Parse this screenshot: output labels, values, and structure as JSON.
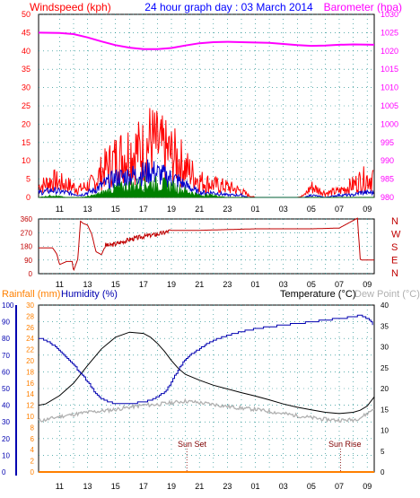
{
  "colors": {
    "background": "#ffffff",
    "grid": "#008080",
    "wind": "#ff0000",
    "gust_dir_title": "#0000ff",
    "gust": "#0000cd",
    "avg_wind": "#008000",
    "barometer": "#ff00ff",
    "direction": "#c00000",
    "humidity": "#0000b0",
    "rain_axis": "#ff8000",
    "temperature": "#000000",
    "dewpoint": "#b0b0b0",
    "axis_left": "#0000b0"
  },
  "header": {
    "windspeed_title": "Windspeed (kph)",
    "graph_title": "24 hour graph day : 03 March 2014",
    "barometer_title": "Barometer (hpa)"
  },
  "bottom_header": {
    "rainfall_title": "Rainfall (mm)",
    "humidity_title": "Humidity (%)",
    "temperature_title": "Temperature (°C)",
    "dewpoint_title": "Dew Point (°C)"
  },
  "direction_labels": [
    "N",
    "W",
    "S",
    "E",
    "N"
  ],
  "annotations": {
    "sunset": "Sun Set",
    "sunrise": "Sun Rise"
  },
  "chart_data": [
    {
      "type": "line",
      "title": "24 hour graph day : 03 March 2014",
      "x_ticks": [
        "11",
        "13",
        "15",
        "17",
        "19",
        "21",
        "23",
        "01",
        "03",
        "05",
        "07",
        "09"
      ],
      "xlim_hours": [
        9.5,
        33.5
      ],
      "y_left": {
        "label": "Windspeed (kph)",
        "ylim": [
          0,
          50
        ],
        "ticks": [
          0,
          5,
          10,
          15,
          20,
          25,
          30,
          35,
          40,
          45,
          50
        ]
      },
      "y_right": {
        "label": "Barometer (hpa)",
        "ylim": [
          980,
          1030
        ],
        "ticks": [
          980,
          985,
          990,
          995,
          1000,
          1005,
          1010,
          1015,
          1020,
          1025,
          1030
        ]
      },
      "series": [
        {
          "name": "Barometer",
          "axis": "right",
          "x": [
            9.5,
            11,
            12,
            13,
            14,
            15,
            16,
            17,
            18,
            19,
            20,
            21,
            22,
            23,
            24,
            25,
            26,
            27,
            28,
            29,
            30,
            31,
            32,
            33.5
          ],
          "values": [
            1025.0,
            1024.9,
            1024.6,
            1023.7,
            1022.6,
            1021.6,
            1020.9,
            1020.5,
            1020.5,
            1020.8,
            1021.5,
            1022.1,
            1022.4,
            1022.5,
            1022.4,
            1022.3,
            1022.2,
            1021.9,
            1021.6,
            1021.4,
            1021.5,
            1021.7,
            1021.8,
            1021.7
          ]
        },
        {
          "name": "Wind gust envelope",
          "x": [
            9.5,
            10.5,
            11.5,
            12.5,
            13.5,
            14,
            15,
            16,
            17,
            17.5,
            18,
            19,
            19.5,
            20,
            21,
            22,
            23,
            24,
            24.5,
            25,
            26,
            27,
            28,
            28.5,
            29,
            30,
            31,
            32,
            32.5,
            33,
            33.5
          ],
          "values": [
            5,
            8,
            6,
            4,
            7,
            12,
            18,
            22,
            22,
            27,
            24,
            20,
            18,
            14,
            8,
            6,
            5,
            3,
            1,
            0,
            0,
            0,
            0,
            1,
            5,
            2,
            3,
            6,
            8,
            9,
            10
          ]
        },
        {
          "name": "Wind speed",
          "x": [
            9.5,
            10.5,
            11.5,
            12.5,
            13.5,
            14,
            15,
            16,
            17,
            17.5,
            18,
            19,
            19.5,
            20,
            21,
            22,
            23,
            24,
            24.5,
            25,
            26,
            27,
            28,
            28.5,
            29,
            30,
            31,
            32,
            32.5,
            33,
            33.5
          ],
          "values": [
            2,
            3,
            2,
            1,
            3,
            5,
            8,
            9,
            10,
            11,
            10,
            8,
            7,
            5,
            2,
            2,
            1,
            1,
            0,
            0,
            0,
            0,
            0,
            0,
            1,
            0,
            1,
            1,
            2,
            2,
            2
          ]
        },
        {
          "name": "Average wind",
          "x": [
            9.5,
            10.5,
            11.5,
            12.5,
            13.5,
            14,
            15,
            16,
            17,
            17.5,
            18,
            19,
            19.5,
            20,
            21,
            22,
            23,
            24,
            24.5,
            25,
            26,
            27,
            28,
            28.5,
            29,
            30,
            31,
            32,
            32.5,
            33,
            33.5
          ],
          "values": [
            0,
            1,
            0,
            0,
            1,
            2,
            4,
            5,
            6,
            6,
            6,
            5,
            4,
            3,
            1,
            1,
            0,
            0,
            0,
            0,
            0,
            0,
            0,
            0,
            0,
            0,
            0,
            0,
            0,
            0,
            0
          ]
        }
      ]
    },
    {
      "type": "line",
      "title": "Wind Direction",
      "y_ticks": [
        0,
        90,
        180,
        270,
        360
      ],
      "ylim": [
        0,
        360
      ],
      "series": [
        {
          "name": "Wind Direction",
          "x": [
            9.5,
            10.5,
            10.8,
            11,
            11.5,
            11.9,
            12,
            12.3,
            12.5,
            12.7,
            13,
            13.3,
            13.6,
            14,
            14.3,
            14.5,
            15,
            16,
            17,
            18,
            18.5,
            19,
            21,
            23,
            25,
            27,
            29,
            31,
            32.3,
            32.5,
            32.6,
            33,
            33.5
          ],
          "values": [
            170,
            170,
            130,
            60,
            80,
            80,
            20,
            95,
            345,
            330,
            320,
            260,
            145,
            125,
            190,
            185,
            195,
            225,
            245,
            260,
            270,
            285,
            285,
            290,
            295,
            295,
            295,
            300,
            365,
            95,
            90,
            90,
            90
          ]
        }
      ]
    },
    {
      "type": "line",
      "title": "Humidity / Temperature / Dew Point / Rainfall",
      "y_humidity": {
        "label": "Humidity (%)",
        "ylim": [
          0,
          100
        ],
        "ticks": [
          0,
          10,
          20,
          30,
          40,
          50,
          60,
          70,
          80,
          90,
          100
        ]
      },
      "y_rainfall": {
        "label": "Rainfall (mm)",
        "ylim": [
          0,
          30
        ],
        "ticks": [
          0,
          2,
          4,
          6,
          8,
          10,
          12,
          14,
          16,
          18,
          20,
          22,
          24,
          26,
          28,
          30
        ]
      },
      "y_temperature": {
        "label": "Temperature (°C)",
        "ylim": [
          0,
          40
        ],
        "ticks": [
          0,
          5,
          10,
          15,
          20,
          25,
          30,
          35,
          40
        ]
      },
      "series": [
        {
          "name": "Humidity",
          "axis": "humidity",
          "x": [
            9.5,
            10,
            11,
            12,
            13,
            13.5,
            14,
            14.5,
            15,
            16,
            17,
            17.5,
            18,
            18.5,
            19,
            19.5,
            20,
            21,
            22,
            23,
            24,
            25,
            26,
            27,
            28,
            29,
            30,
            31,
            32,
            32.5,
            33,
            33.3,
            33.5
          ],
          "values": [
            80,
            79,
            73,
            64,
            54,
            48,
            44,
            42,
            41,
            41,
            42,
            43,
            45,
            48,
            54,
            62,
            68,
            74,
            79,
            82,
            84,
            86,
            87,
            88,
            89,
            90,
            91,
            92,
            93,
            94,
            92,
            90,
            85
          ]
        },
        {
          "name": "Temperature (°C)",
          "axis": "temperature",
          "x": [
            9.5,
            10,
            11,
            12,
            13,
            14,
            15,
            16,
            17,
            17.5,
            18,
            18.5,
            19,
            19.5,
            20,
            21,
            22,
            23,
            24,
            25,
            26,
            27,
            28,
            29,
            30,
            31,
            32,
            32.5,
            33,
            33.5
          ],
          "values": [
            16,
            16.3,
            18.3,
            21.3,
            25.5,
            29.5,
            32.3,
            33.5,
            33.2,
            32.3,
            30.8,
            28.9,
            26.7,
            24.8,
            23.4,
            22,
            20.8,
            19.9,
            19,
            18.2,
            17.3,
            16.3,
            15.5,
            14.9,
            14.3,
            14,
            14.3,
            14.8,
            15.8,
            18
          ]
        },
        {
          "name": "Dew Point (°C)",
          "axis": "temperature",
          "x": [
            9.5,
            10,
            11,
            12,
            13,
            14,
            15,
            16,
            17,
            18,
            19,
            20,
            21,
            22,
            23,
            24,
            25,
            26,
            27,
            28,
            29,
            30,
            31,
            32,
            32.5,
            33,
            33.5
          ],
          "values": [
            12.3,
            12.5,
            13.3,
            13.8,
            14.3,
            14.6,
            15,
            15.5,
            16,
            16.2,
            16.6,
            17,
            16.6,
            16.2,
            15.7,
            15.3,
            15,
            14.5,
            14,
            13.5,
            13,
            12.6,
            12.4,
            12.5,
            13,
            14,
            15.3
          ]
        },
        {
          "name": "Rainfall (mm)",
          "axis": "rainfall",
          "x": [
            9.5,
            33.5
          ],
          "values": [
            0,
            0
          ]
        }
      ]
    }
  ]
}
